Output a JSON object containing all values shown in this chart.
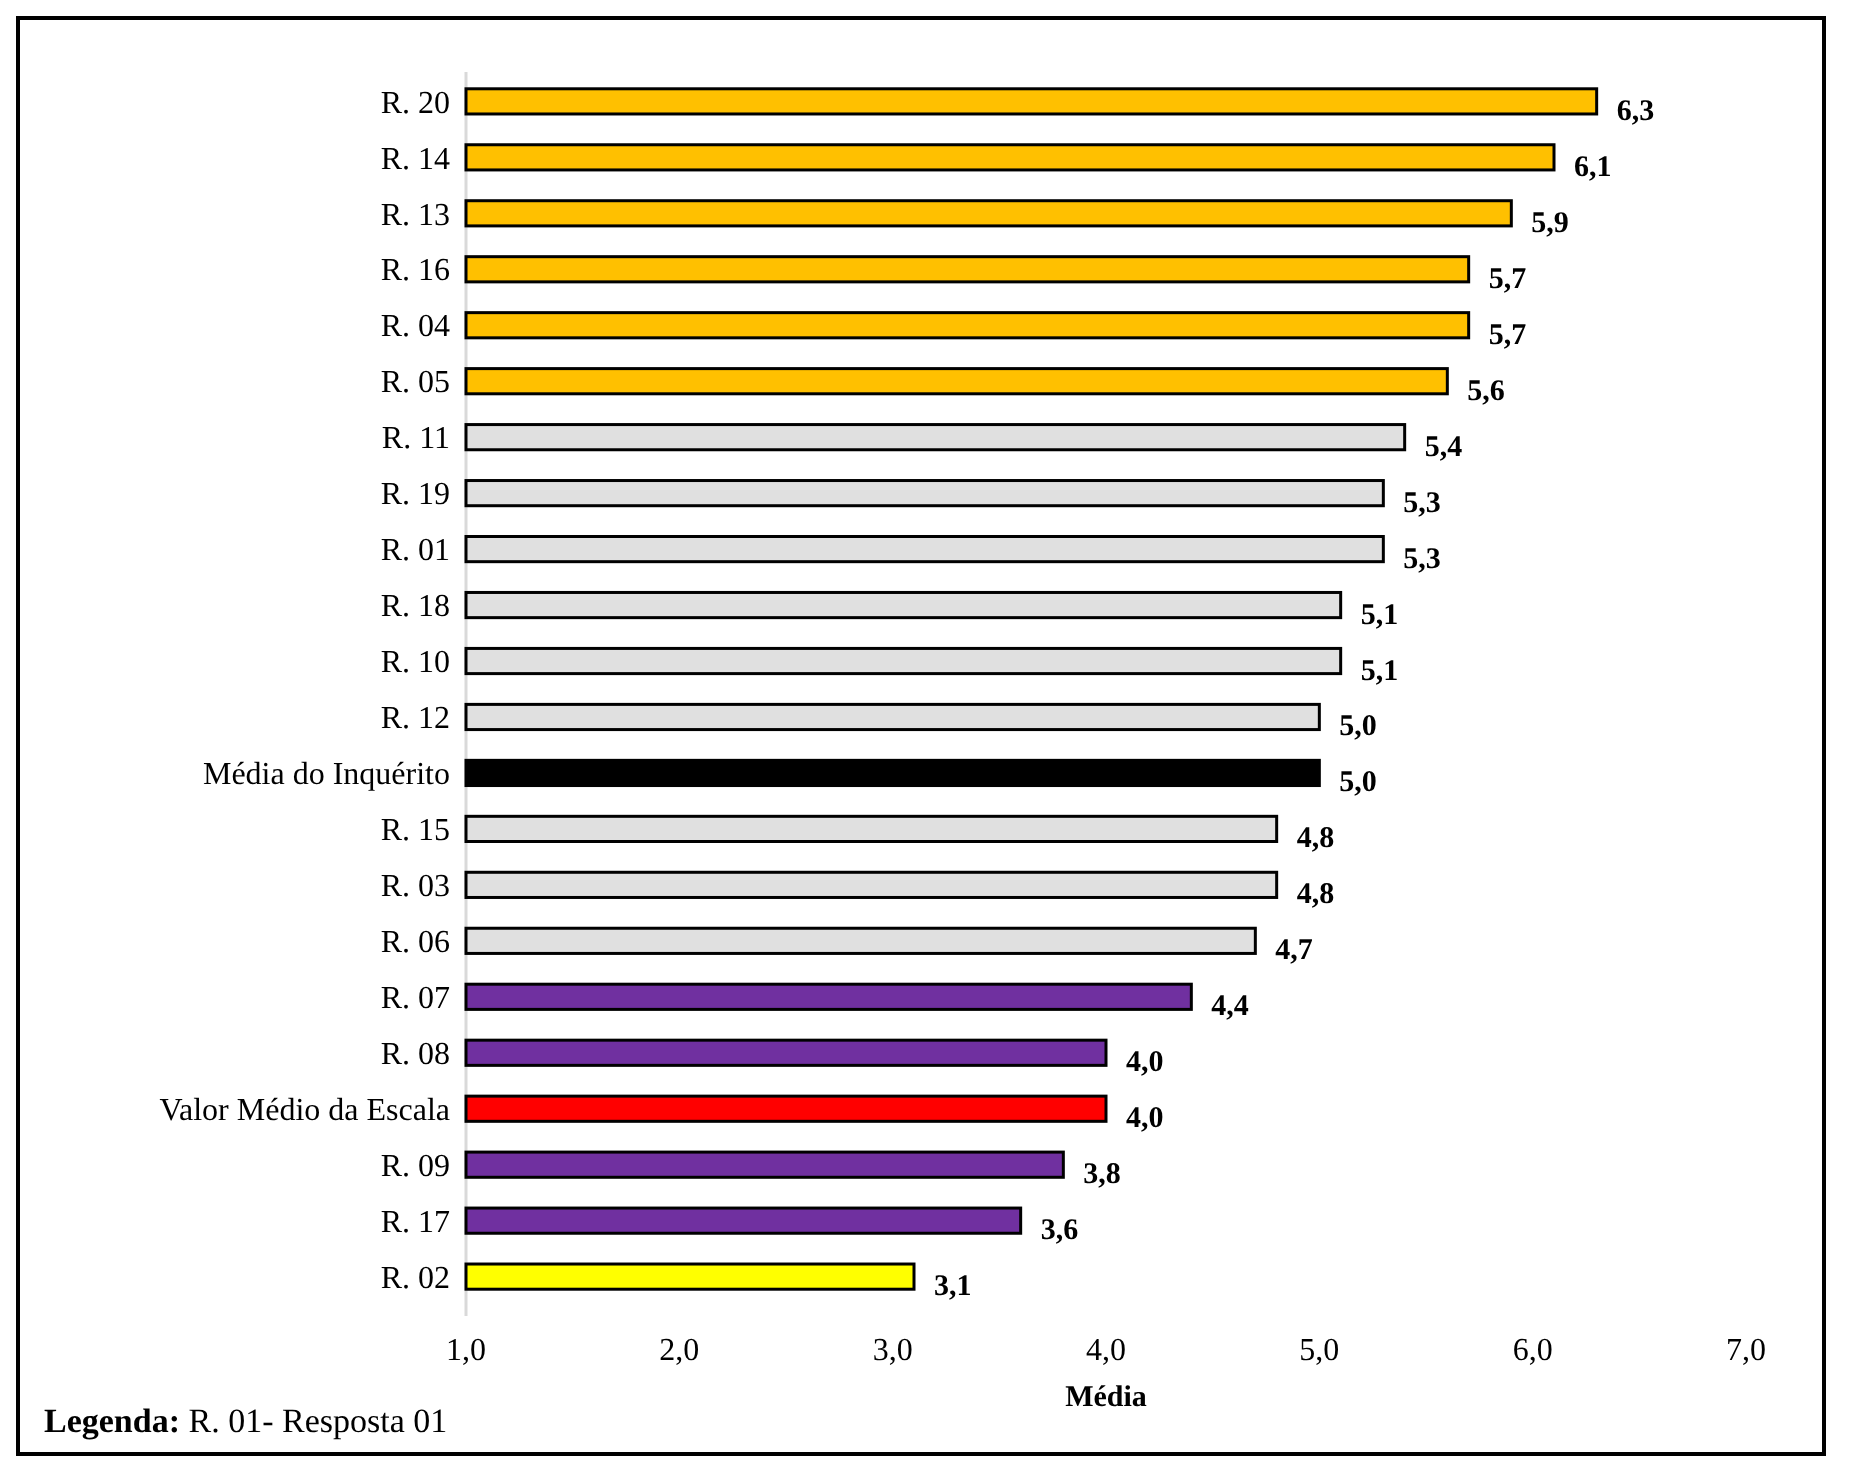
{
  "chart_data": {
    "type": "bar",
    "orientation": "horizontal",
    "xlabel": "Média",
    "categories": [
      "R. 20",
      "R. 14",
      "R. 13",
      "R. 16",
      "R. 04",
      "R. 05",
      "R. 11",
      "R. 19",
      "R. 01",
      "R. 18",
      "R. 10",
      "R. 12",
      "Média do Inquérito",
      "R. 15",
      "R. 03",
      "R. 06",
      "R. 07",
      "R. 08",
      "Valor Médio da Escala",
      "R. 09",
      "R. 17",
      "R. 02"
    ],
    "values": [
      6.3,
      6.1,
      5.9,
      5.7,
      5.7,
      5.6,
      5.4,
      5.3,
      5.3,
      5.1,
      5.1,
      5.0,
      5.0,
      4.8,
      4.8,
      4.7,
      4.4,
      4.0,
      4.0,
      3.8,
      3.6,
      3.1
    ],
    "colors": [
      "#ffc000",
      "#ffc000",
      "#ffc000",
      "#ffc000",
      "#ffc000",
      "#ffc000",
      "#e0e0e0",
      "#e0e0e0",
      "#e0e0e0",
      "#e0e0e0",
      "#e0e0e0",
      "#e0e0e0",
      "#000000",
      "#e0e0e0",
      "#e0e0e0",
      "#e0e0e0",
      "#7030a0",
      "#7030a0",
      "#ff0000",
      "#7030a0",
      "#7030a0",
      "#ffff00"
    ],
    "value_labels": [
      "6,3",
      "6,1",
      "5,9",
      "5,7",
      "5,7",
      "5,6",
      "5,4",
      "5,3",
      "5,3",
      "5,1",
      "5,1",
      "5,0",
      "5,0",
      "4,8",
      "4,8",
      "4,7",
      "4,4",
      "4,0",
      "4,0",
      "3,8",
      "3,6",
      "3,1"
    ],
    "xlim": [
      1,
      7
    ],
    "xticks": [
      {
        "value": 1,
        "label": "1,0"
      },
      {
        "value": 2,
        "label": "2,0"
      },
      {
        "value": 3,
        "label": "3,0"
      },
      {
        "value": 4,
        "label": "4,0"
      },
      {
        "value": 5,
        "label": "5,0"
      },
      {
        "value": 6,
        "label": "6,0"
      },
      {
        "value": 7,
        "label": "7,0"
      }
    ],
    "grid": false,
    "annotations": [
      "Legenda: R. 01- Resposta 01"
    ]
  }
}
